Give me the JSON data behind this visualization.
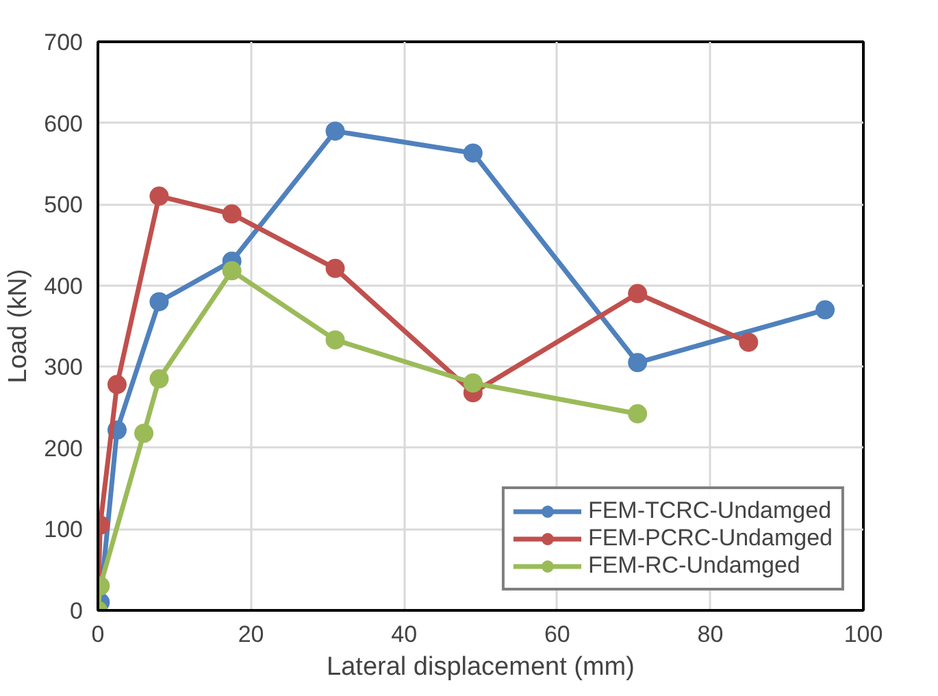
{
  "chart_data": {
    "type": "line",
    "xlabel": "Lateral displacement (mm)",
    "ylabel": "Load (kN)",
    "xlim": [
      0,
      100
    ],
    "xticks": [
      0,
      20,
      40,
      60,
      80,
      100
    ],
    "ylim": [
      0,
      700
    ],
    "yticks": [
      0,
      100,
      200,
      300,
      400,
      500,
      600,
      700
    ],
    "grid": true,
    "legend": "bottom right",
    "marker": "circle",
    "line_style": "solid",
    "series": [
      {
        "name": "FEM-TCRC-Undamged",
        "color": "#4f81bd",
        "x": [
          0,
          0.3,
          2.5,
          8,
          17.5,
          31,
          49,
          70.5,
          95
        ],
        "values": [
          0,
          10,
          222,
          380,
          430,
          590,
          563,
          305,
          370
        ]
      },
      {
        "name": "FEM-PCRC-Undamged",
        "color": "#c0504d",
        "x": [
          0,
          0.3,
          2.5,
          8,
          17.5,
          31,
          49,
          70.5,
          85
        ],
        "values": [
          0,
          105,
          278,
          510,
          488,
          421,
          268,
          390,
          330
        ]
      },
      {
        "name": "FEM-RC-Undamged",
        "color": "#9bbb59",
        "x": [
          0,
          0.3,
          6,
          8,
          17.5,
          31,
          49,
          70.5
        ],
        "values": [
          0,
          30,
          218,
          285,
          418,
          333,
          280,
          242
        ]
      }
    ]
  }
}
